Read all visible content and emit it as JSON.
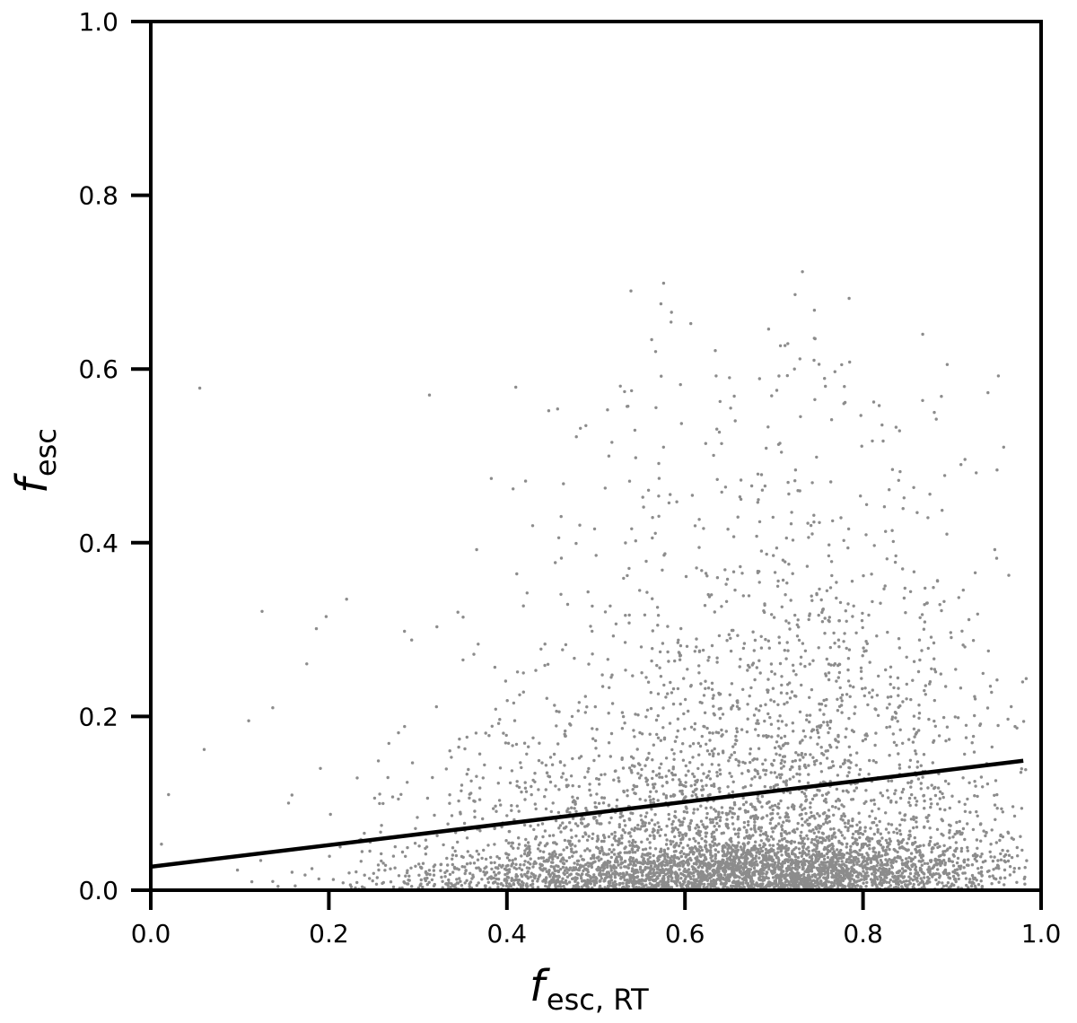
{
  "chart_data": {
    "type": "scatter",
    "xlabel": {
      "main": "f",
      "sub": "esc, RT"
    },
    "ylabel": {
      "main": "f",
      "sub": "esc"
    },
    "xlim": [
      0.0,
      1.0
    ],
    "ylim": [
      0.0,
      1.0
    ],
    "xticks": [
      "0.0",
      "0.2",
      "0.4",
      "0.6",
      "0.8",
      "1.0"
    ],
    "yticks": [
      "0.0",
      "0.2",
      "0.4",
      "0.6",
      "0.8",
      "1.0"
    ],
    "grid": false,
    "legend": "none",
    "point_color": "#8c8c8c",
    "line_color": "#000000",
    "fit_line": {
      "x": [
        0.0,
        0.98
      ],
      "y": [
        0.027,
        0.149
      ]
    },
    "scatter_outliers": [
      [
        0.055,
        0.578
      ],
      [
        0.313,
        0.57
      ],
      [
        0.573,
        0.675
      ],
      [
        0.732,
        0.712
      ],
      [
        0.694,
        0.646
      ],
      [
        0.867,
        0.64
      ],
      [
        0.567,
        0.62
      ],
      [
        0.952,
        0.592
      ],
      [
        0.958,
        0.51
      ],
      [
        0.125,
        0.321
      ],
      [
        0.186,
        0.301
      ],
      [
        0.197,
        0.315
      ],
      [
        0.22,
        0.335
      ],
      [
        0.11,
        0.195
      ],
      [
        0.137,
        0.21
      ],
      [
        0.06,
        0.162
      ],
      [
        0.02,
        0.11
      ],
      [
        0.012,
        0.053
      ],
      [
        0.366,
        0.392
      ],
      [
        0.345,
        0.32
      ],
      [
        0.285,
        0.298
      ],
      [
        0.293,
        0.288
      ],
      [
        0.447,
        0.552
      ],
      [
        0.457,
        0.554
      ],
      [
        0.421,
        0.471
      ],
      [
        0.407,
        0.462
      ],
      [
        0.948,
        0.392
      ],
      [
        0.91,
        0.49
      ],
      [
        0.812,
        0.562
      ],
      [
        0.776,
        0.605
      ],
      [
        0.745,
        0.61
      ],
      [
        0.65,
        0.59
      ],
      [
        0.635,
        0.592
      ],
      [
        0.595,
        0.582
      ],
      [
        0.54,
        0.575
      ],
      [
        0.513,
        0.553
      ],
      [
        0.478,
        0.522
      ],
      [
        0.88,
        0.55
      ],
      [
        0.785,
        0.608
      ],
      [
        0.723,
        0.6
      ]
    ],
    "density_clusters": [
      {
        "cx": 0.7,
        "cy": 0.025,
        "sx": 0.14,
        "sy": 0.025,
        "n": 2600
      },
      {
        "cx": 0.66,
        "cy": 0.09,
        "sx": 0.15,
        "sy": 0.07,
        "n": 1400
      },
      {
        "cx": 0.72,
        "cy": 0.22,
        "sx": 0.13,
        "sy": 0.12,
        "n": 700
      },
      {
        "cx": 0.45,
        "cy": 0.015,
        "sx": 0.12,
        "sy": 0.02,
        "n": 500
      },
      {
        "cx": 0.7,
        "cy": 0.4,
        "sx": 0.12,
        "sy": 0.1,
        "n": 260
      },
      {
        "cx": 0.42,
        "cy": 0.1,
        "sx": 0.1,
        "sy": 0.08,
        "n": 180
      }
    ]
  }
}
